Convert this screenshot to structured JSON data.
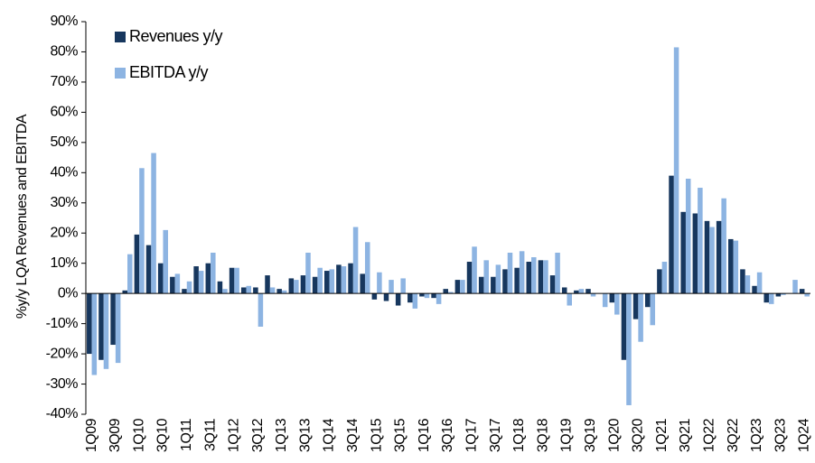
{
  "chart_data": {
    "type": "bar",
    "y_label": "%y/y LQA Revenues and EBITDA",
    "categories": [
      "1Q09",
      null,
      "3Q09",
      null,
      "1Q10",
      null,
      "3Q10",
      null,
      "1Q11",
      null,
      "3Q11",
      null,
      "1Q12",
      null,
      "3Q12",
      null,
      "1Q13",
      null,
      "3Q13",
      null,
      "1Q14",
      null,
      "3Q14",
      null,
      "1Q15",
      null,
      "3Q15",
      null,
      "1Q16",
      null,
      "3Q16",
      null,
      "1Q17",
      null,
      "3Q17",
      null,
      "1Q18",
      null,
      "3Q18",
      null,
      "1Q19",
      null,
      "3Q19",
      null,
      "1Q20",
      null,
      "3Q20",
      null,
      "1Q21",
      null,
      "3Q21",
      null,
      "1Q22",
      null,
      "3Q22",
      null,
      "1Q23",
      null,
      "3Q23",
      null,
      "1Q24"
    ],
    "series": [
      {
        "name": "Revenues y/y",
        "color": "#17375e",
        "values": [
          -20,
          -22,
          -17,
          1,
          19.5,
          16,
          10,
          5.5,
          1.5,
          9,
          10,
          4,
          8.5,
          2,
          2,
          6,
          1.5,
          5,
          6,
          5.5,
          7.5,
          9.5,
          10,
          6.5,
          -2,
          -2.5,
          -4,
          -3,
          -1,
          -1.5,
          1.5,
          4.5,
          10.5,
          5.5,
          5.5,
          8,
          8.5,
          10.5,
          11,
          6,
          2,
          1,
          1.5,
          0,
          -3,
          -22,
          -8.5,
          -4.5,
          8,
          39,
          27,
          26.5,
          24,
          24,
          18,
          8,
          2.5,
          -3,
          -1,
          0,
          1.5
        ]
      },
      {
        "name": "EBITDA y/y",
        "color": "#8db4e2",
        "values": [
          -27,
          -25,
          -23,
          13,
          41.5,
          46.5,
          21,
          6.5,
          4,
          7.5,
          13.5,
          1.5,
          8.5,
          2.5,
          -11,
          2,
          1,
          4.5,
          13.5,
          8.5,
          8,
          9,
          22,
          17,
          7,
          4.5,
          5,
          -5,
          -1.5,
          -3.5,
          0.5,
          4.5,
          15.5,
          11,
          9.5,
          13.5,
          14,
          12,
          11,
          13.5,
          -4,
          1.5,
          -1,
          -4.5,
          -7,
          -37,
          -16,
          -10.5,
          10.5,
          81.5,
          38,
          35,
          22,
          31.5,
          17.5,
          6,
          7,
          -3.5,
          -0.5,
          4.5,
          -1
        ]
      }
    ],
    "ylim": [
      -40,
      90
    ],
    "yticks": [
      {
        "value": -40,
        "label": "-40%"
      },
      {
        "value": -30,
        "label": "-30%"
      },
      {
        "value": -20,
        "label": "-20%"
      },
      {
        "value": -10,
        "label": "-10%"
      },
      {
        "value": 0,
        "label": "0%"
      },
      {
        "value": 10,
        "label": "10%"
      },
      {
        "value": 20,
        "label": "20%"
      },
      {
        "value": 30,
        "label": "30%"
      },
      {
        "value": 40,
        "label": "40%"
      },
      {
        "value": 50,
        "label": "50%"
      },
      {
        "value": 60,
        "label": "60%"
      },
      {
        "value": 70,
        "label": "70%"
      },
      {
        "value": 80,
        "label": "80%"
      },
      {
        "value": 90,
        "label": "90%"
      }
    ],
    "grid": false,
    "legend": "top-left"
  }
}
